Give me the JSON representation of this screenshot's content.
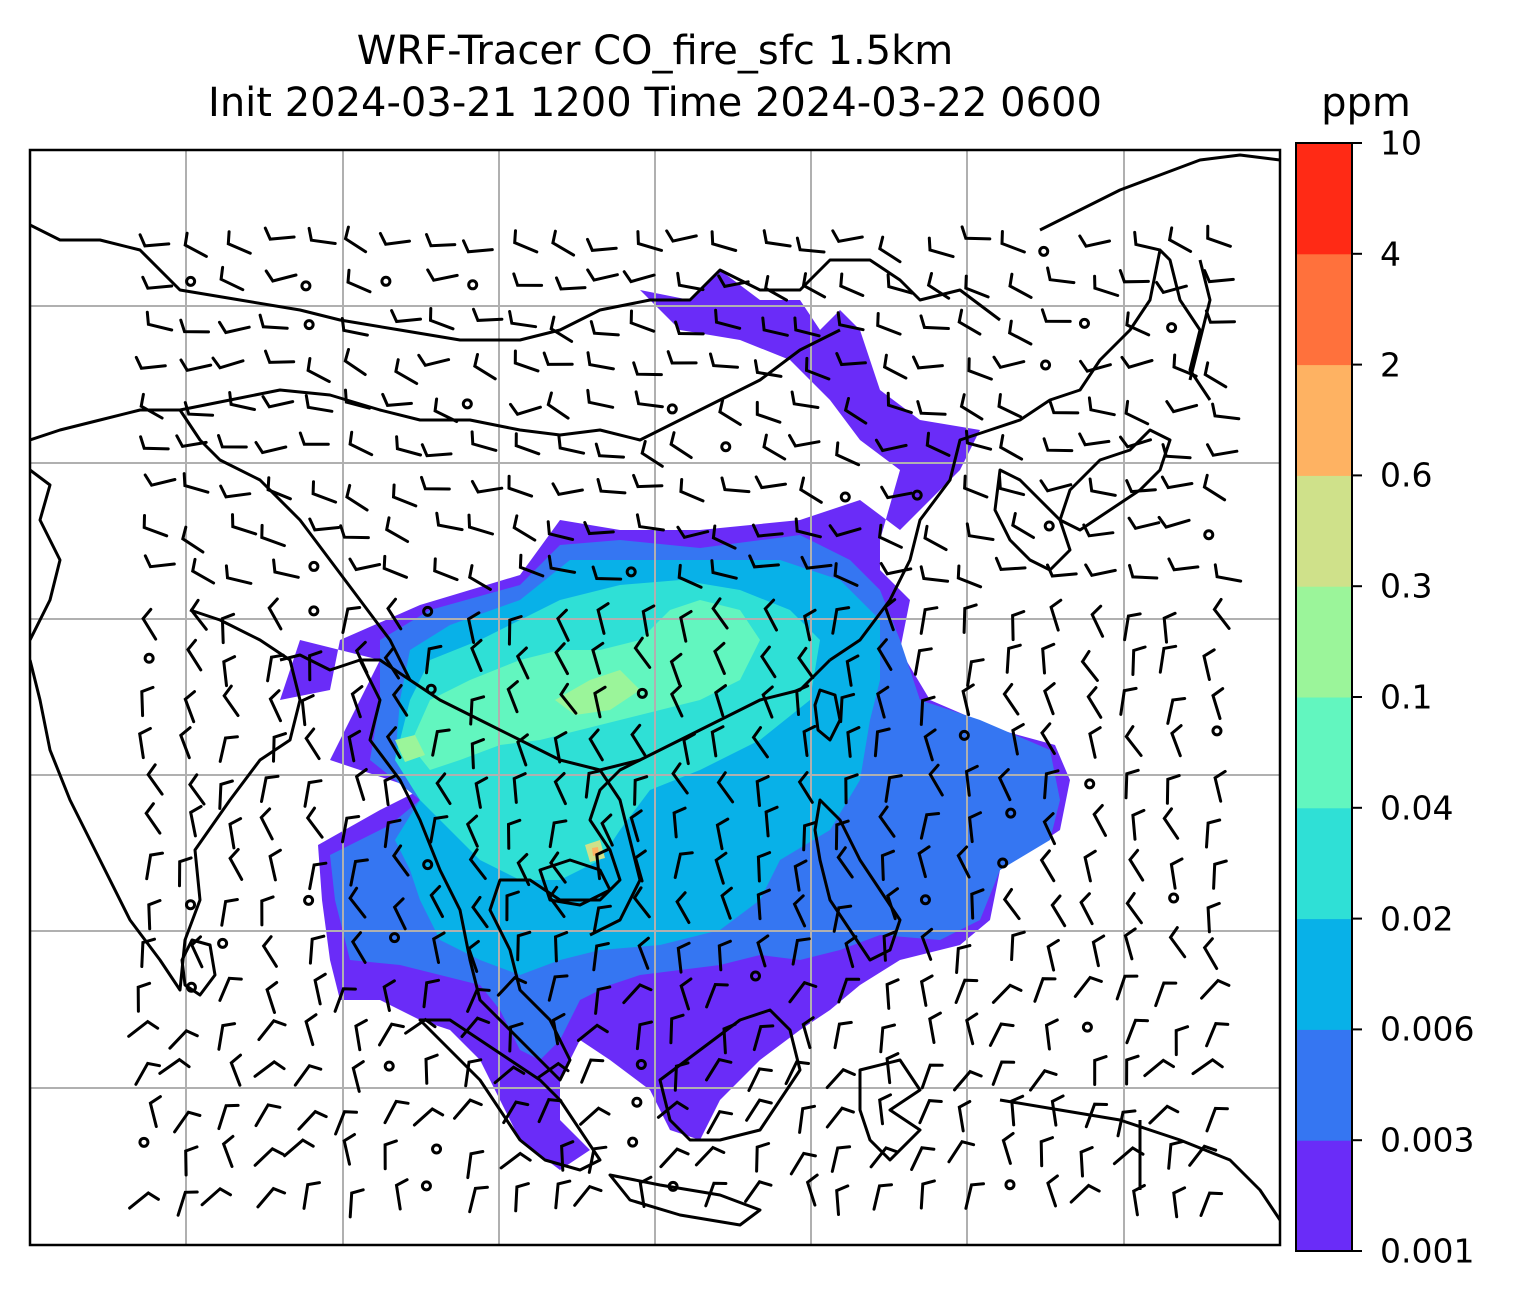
{
  "title": {
    "line1": "WRF-Tracer CO_fire_sfc 1.5km",
    "line2": "Init 2024-03-21 1200 Time 2024-03-22 0600"
  },
  "colorbar": {
    "unit": "ppm",
    "levels": [
      "0.001",
      "0.003",
      "0.006",
      "0.02",
      "0.04",
      "0.1",
      "0.3",
      "0.6",
      "2",
      "4",
      "10"
    ],
    "colors": [
      "#6a2cf8",
      "#3576f2",
      "#08b1e8",
      "#2fe0d6",
      "#62f6bf",
      "#9bf59a",
      "#cfe18a",
      "#feb262",
      "#ff713c",
      "#ff2a15"
    ]
  },
  "map": {
    "gridlines": true,
    "field": "CO_fire_sfc",
    "overlays": [
      "coastlines",
      "wind-barbs"
    ]
  }
}
